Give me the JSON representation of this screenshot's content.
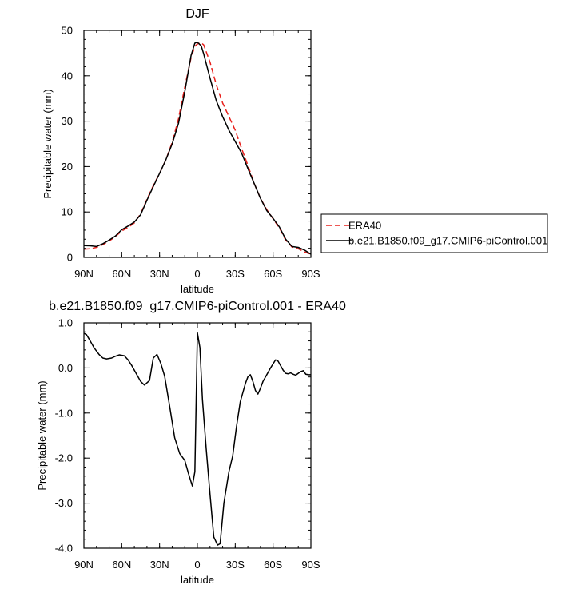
{
  "chart_data": [
    {
      "type": "line",
      "title": "DJF",
      "xlabel": "latitude",
      "ylabel": "Precipitable water (mm)",
      "xlim": [
        90,
        -90
      ],
      "ylim": [
        0,
        50
      ],
      "x_tick_values": [
        90,
        60,
        30,
        0,
        -30,
        -60,
        -90
      ],
      "x_tick_labels": [
        "90N",
        "60N",
        "30N",
        "0",
        "30S",
        "60S",
        "90S"
      ],
      "y_tick_values": [
        0,
        10,
        20,
        30,
        40,
        50
      ],
      "y_tick_labels": [
        "0",
        "10",
        "20",
        "30",
        "40",
        "50"
      ],
      "legend_placement": "right",
      "series": [
        {
          "name": "ERA40",
          "color": "#e8201c",
          "dash": "dashed",
          "x": [
            90,
            85,
            80,
            75,
            70,
            65,
            60,
            55,
            50,
            45,
            40,
            35,
            30,
            25,
            20,
            15,
            10,
            5,
            2,
            0,
            -3,
            -5,
            -10,
            -15,
            -20,
            -25,
            -30,
            -35,
            -40,
            -45,
            -50,
            -55,
            -60,
            -65,
            -70,
            -75,
            -80,
            -85,
            -90
          ],
          "y": [
            1.8,
            1.9,
            2.2,
            2.8,
            3.6,
            4.6,
            5.8,
            6.6,
            7.6,
            9.6,
            12.8,
            15.8,
            18.5,
            21.5,
            25.3,
            30.5,
            37.5,
            44,
            46.5,
            47.0,
            47.3,
            46.8,
            43,
            38,
            34,
            31,
            28,
            24,
            20.3,
            16.3,
            13,
            10.5,
            8.5,
            6.5,
            3.8,
            2.3,
            1.9,
            1.2,
            0.7
          ]
        },
        {
          "name": "b.e21.B1850.f09_g17.CMIP6-piControl.001",
          "color": "#000000",
          "dash": "solid",
          "x": [
            90,
            85,
            80,
            75,
            70,
            65,
            60,
            55,
            50,
            45,
            40,
            35,
            30,
            25,
            20,
            15,
            10,
            5,
            2,
            0,
            -3,
            -5,
            -10,
            -15,
            -20,
            -25,
            -30,
            -35,
            -40,
            -45,
            -50,
            -55,
            -60,
            -65,
            -70,
            -75,
            -80,
            -85,
            -90
          ],
          "y": [
            2.6,
            2.55,
            2.4,
            3.0,
            3.8,
            4.7,
            6.1,
            6.9,
            7.8,
            9.4,
            12.6,
            15.6,
            18.5,
            21.5,
            25.0,
            29.5,
            36.5,
            44.5,
            47.2,
            47.4,
            46.6,
            44.8,
            39.5,
            34.5,
            31.0,
            28.0,
            25.5,
            23.0,
            19.6,
            16.3,
            13.0,
            10.3,
            8.6,
            6.7,
            4.0,
            2.4,
            2.2,
            1.6,
            0.7
          ]
        }
      ]
    },
    {
      "type": "line",
      "title": "b.e21.B1850.f09_g17.CMIP6-piControl.001 - ERA40",
      "xlabel": "latitude",
      "ylabel": "Precipitable water (mm)",
      "xlim": [
        90,
        -90
      ],
      "ylim": [
        -4.0,
        1.0
      ],
      "x_tick_values": [
        90,
        60,
        30,
        0,
        -30,
        -60,
        -90
      ],
      "x_tick_labels": [
        "90N",
        "60N",
        "30N",
        "0",
        "30S",
        "60S",
        "90S"
      ],
      "y_tick_values": [
        1.0,
        0.0,
        -1.0,
        -2.0,
        -3.0,
        -4.0
      ],
      "y_tick_labels": [
        "1.0",
        "0.0",
        "-1.0",
        "-2.0",
        "-3.0",
        "-4.0"
      ],
      "series": [
        {
          "color": "#000000",
          "dash": "solid",
          "x": [
            90,
            88,
            85,
            82,
            78,
            75,
            72,
            68,
            65,
            62,
            58,
            55,
            52,
            48,
            45,
            42,
            38,
            35,
            32,
            29,
            26,
            22,
            18,
            14,
            10,
            7,
            4,
            2,
            0,
            -2,
            -4,
            -7,
            -10,
            -13,
            -16,
            -18,
            -21,
            -25,
            -28,
            -31,
            -34,
            -38,
            -40,
            -42,
            -44,
            -46,
            -48,
            -50,
            -52,
            -55,
            -58,
            -62,
            -64,
            -66,
            -68,
            -70,
            -72,
            -74,
            -76,
            -78,
            -80,
            -82,
            -84,
            -86,
            -88,
            -90
          ],
          "y": [
            0.77,
            0.74,
            0.6,
            0.45,
            0.3,
            0.22,
            0.2,
            0.22,
            0.26,
            0.29,
            0.27,
            0.18,
            0.05,
            -0.15,
            -0.3,
            -0.38,
            -0.28,
            0.22,
            0.3,
            0.1,
            -0.18,
            -0.85,
            -1.55,
            -1.9,
            -2.05,
            -2.35,
            -2.62,
            -2.3,
            0.78,
            0.45,
            -0.7,
            -1.8,
            -2.8,
            -3.75,
            -3.93,
            -3.9,
            -3.0,
            -2.3,
            -1.95,
            -1.3,
            -0.75,
            -0.35,
            -0.2,
            -0.15,
            -0.3,
            -0.5,
            -0.58,
            -0.45,
            -0.3,
            -0.15,
            0.0,
            0.18,
            0.15,
            0.05,
            -0.05,
            -0.12,
            -0.13,
            -0.11,
            -0.14,
            -0.16,
            -0.12,
            -0.08,
            -0.06,
            -0.14,
            -0.15,
            -0.15
          ]
        }
      ]
    }
  ]
}
